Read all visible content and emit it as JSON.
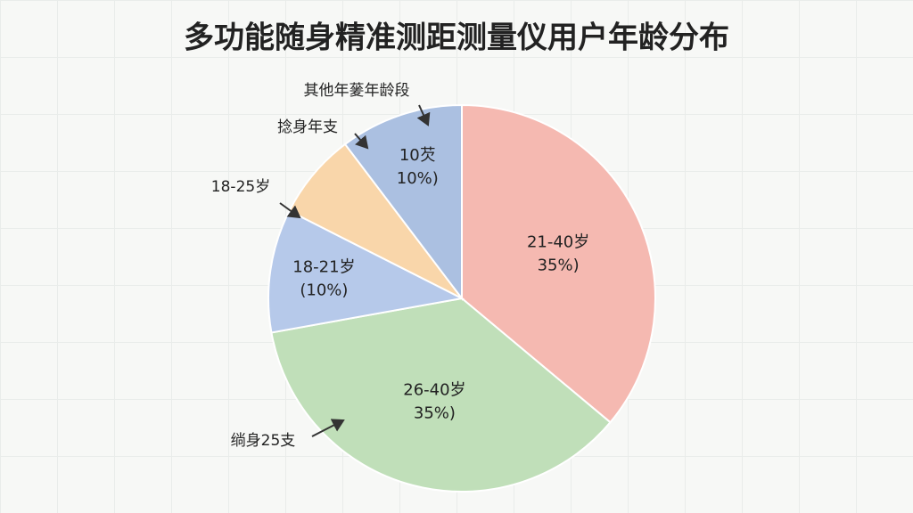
{
  "chart_data": {
    "type": "pie",
    "title": "多功能随身精准测距测量仪用户年龄分布",
    "categories": [
      "21-40岁",
      "26-40岁",
      "18-21岁",
      null,
      "10芡"
    ],
    "values": [
      35,
      35,
      10,
      7,
      10
    ],
    "value_labels": [
      "35%)",
      "35%)",
      "(10%)",
      null,
      "10%)"
    ],
    "colors": [
      "#f5b9b1",
      "#c0dfb9",
      "#b6c9ea",
      "#f9d6aa",
      "#abc0e1"
    ],
    "annotations": [
      "其他年蓌年龄段",
      "捻身年支",
      "18-25岁",
      "绱身25支"
    ]
  }
}
